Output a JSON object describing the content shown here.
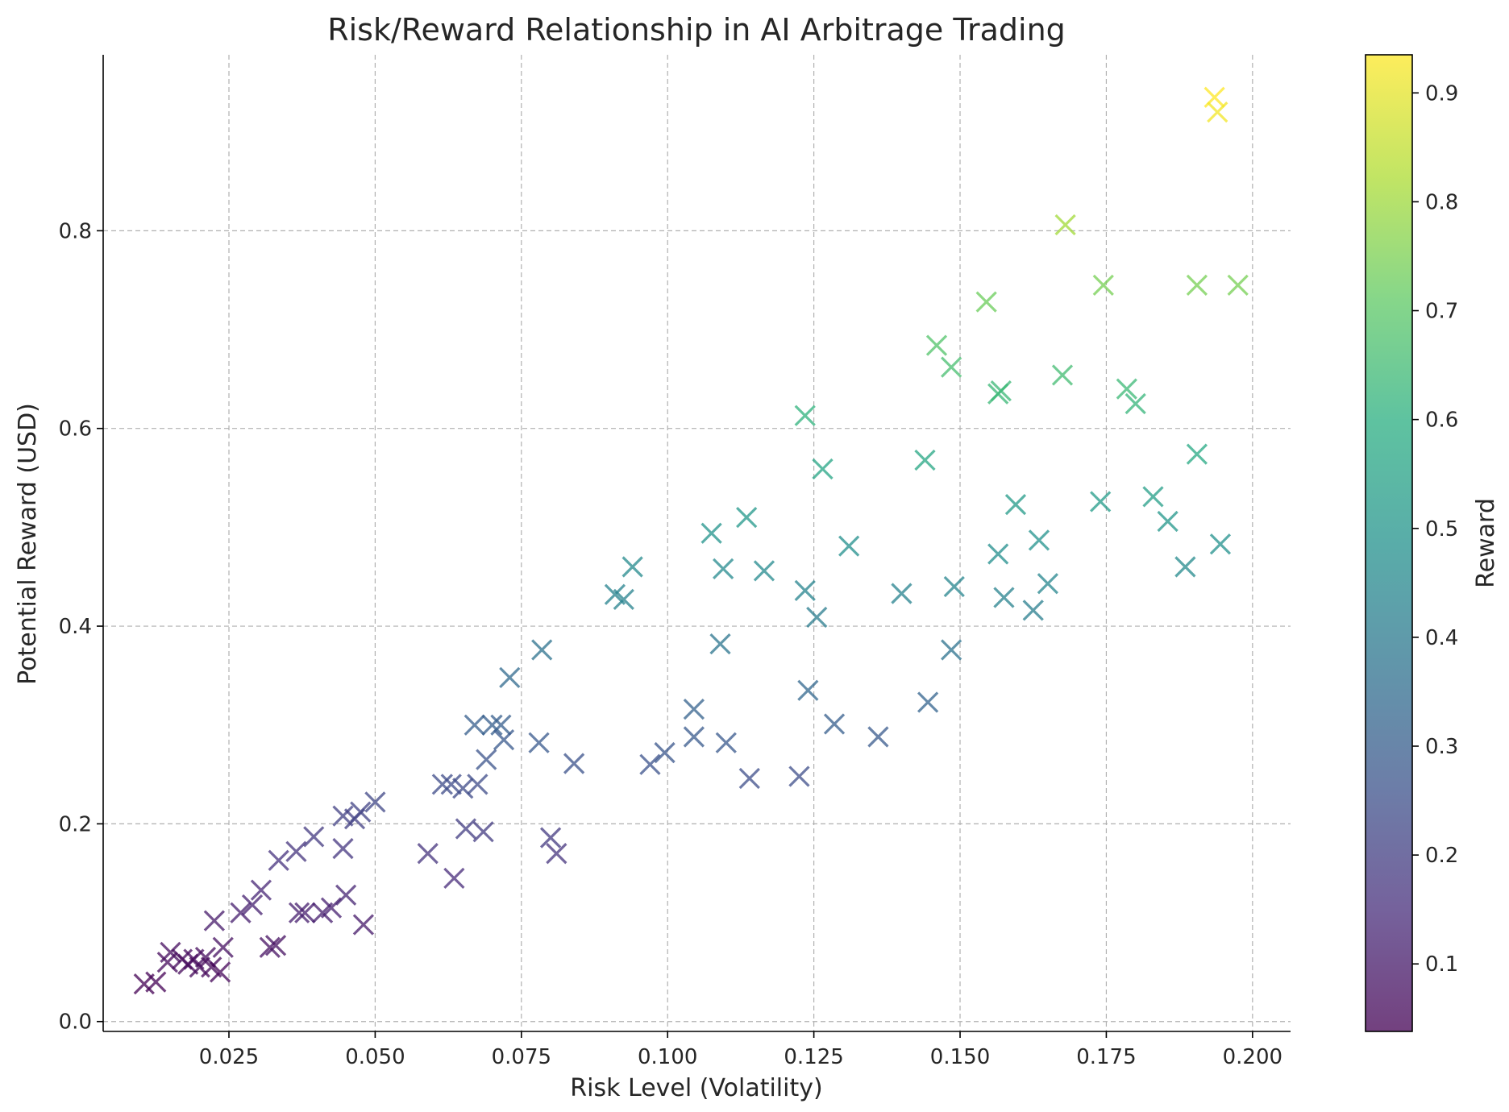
{
  "chart_data": {
    "type": "scatter",
    "title": "Risk/Reward Relationship in AI Arbitrage Trading",
    "xlabel": "Risk Level (Volatility)",
    "ylabel": "Potential Reward (USD)",
    "xlim": [
      0.0035,
      0.2065
    ],
    "ylim": [
      -0.01,
      0.978
    ],
    "xticks": [
      0.025,
      0.05,
      0.075,
      0.1,
      0.125,
      0.15,
      0.175,
      0.2
    ],
    "xtick_labels": [
      "0.025",
      "0.050",
      "0.075",
      "0.100",
      "0.125",
      "0.150",
      "0.175",
      "0.200"
    ],
    "yticks": [
      0.0,
      0.2,
      0.4,
      0.6,
      0.8
    ],
    "ytick_labels": [
      "0.0",
      "0.2",
      "0.4",
      "0.6",
      "0.8"
    ],
    "grid": true,
    "marker": "x",
    "colormap": "viridis",
    "colorbar": {
      "label": "Reward",
      "range": [
        0.038,
        0.935
      ],
      "ticks": [
        0.1,
        0.2,
        0.3,
        0.4,
        0.5,
        0.6,
        0.7,
        0.8,
        0.9
      ],
      "tick_labels": [
        "0.1",
        "0.2",
        "0.3",
        "0.4",
        "0.5",
        "0.6",
        "0.7",
        "0.8",
        "0.9"
      ]
    },
    "points": [
      {
        "x": 0.0105,
        "y": 0.038
      },
      {
        "x": 0.0125,
        "y": 0.04
      },
      {
        "x": 0.0145,
        "y": 0.06
      },
      {
        "x": 0.015,
        "y": 0.07
      },
      {
        "x": 0.017,
        "y": 0.063
      },
      {
        "x": 0.018,
        "y": 0.058
      },
      {
        "x": 0.019,
        "y": 0.063
      },
      {
        "x": 0.02,
        "y": 0.055
      },
      {
        "x": 0.021,
        "y": 0.065
      },
      {
        "x": 0.022,
        "y": 0.055
      },
      {
        "x": 0.0225,
        "y": 0.102
      },
      {
        "x": 0.0235,
        "y": 0.05
      },
      {
        "x": 0.024,
        "y": 0.075
      },
      {
        "x": 0.027,
        "y": 0.11
      },
      {
        "x": 0.029,
        "y": 0.118
      },
      {
        "x": 0.0305,
        "y": 0.133
      },
      {
        "x": 0.032,
        "y": 0.075
      },
      {
        "x": 0.033,
        "y": 0.077
      },
      {
        "x": 0.0335,
        "y": 0.163
      },
      {
        "x": 0.0365,
        "y": 0.172
      },
      {
        "x": 0.037,
        "y": 0.11
      },
      {
        "x": 0.038,
        "y": 0.11
      },
      {
        "x": 0.0395,
        "y": 0.187
      },
      {
        "x": 0.041,
        "y": 0.11
      },
      {
        "x": 0.0425,
        "y": 0.115
      },
      {
        "x": 0.0445,
        "y": 0.175
      },
      {
        "x": 0.0445,
        "y": 0.208
      },
      {
        "x": 0.045,
        "y": 0.128
      },
      {
        "x": 0.0465,
        "y": 0.205
      },
      {
        "x": 0.0475,
        "y": 0.212
      },
      {
        "x": 0.048,
        "y": 0.098
      },
      {
        "x": 0.05,
        "y": 0.222
      },
      {
        "x": 0.059,
        "y": 0.17
      },
      {
        "x": 0.0615,
        "y": 0.24
      },
      {
        "x": 0.063,
        "y": 0.24
      },
      {
        "x": 0.0635,
        "y": 0.145
      },
      {
        "x": 0.065,
        "y": 0.236
      },
      {
        "x": 0.0655,
        "y": 0.195
      },
      {
        "x": 0.067,
        "y": 0.3
      },
      {
        "x": 0.0675,
        "y": 0.24
      },
      {
        "x": 0.0685,
        "y": 0.192
      },
      {
        "x": 0.069,
        "y": 0.265
      },
      {
        "x": 0.07,
        "y": 0.3
      },
      {
        "x": 0.0715,
        "y": 0.3
      },
      {
        "x": 0.072,
        "y": 0.285
      },
      {
        "x": 0.073,
        "y": 0.348
      },
      {
        "x": 0.078,
        "y": 0.282
      },
      {
        "x": 0.0785,
        "y": 0.376
      },
      {
        "x": 0.08,
        "y": 0.186
      },
      {
        "x": 0.081,
        "y": 0.17
      },
      {
        "x": 0.084,
        "y": 0.261
      },
      {
        "x": 0.091,
        "y": 0.432
      },
      {
        "x": 0.0925,
        "y": 0.427
      },
      {
        "x": 0.094,
        "y": 0.46
      },
      {
        "x": 0.097,
        "y": 0.26
      },
      {
        "x": 0.0995,
        "y": 0.272
      },
      {
        "x": 0.1045,
        "y": 0.316
      },
      {
        "x": 0.1045,
        "y": 0.288
      },
      {
        "x": 0.1075,
        "y": 0.494
      },
      {
        "x": 0.109,
        "y": 0.382
      },
      {
        "x": 0.1095,
        "y": 0.458
      },
      {
        "x": 0.11,
        "y": 0.282
      },
      {
        "x": 0.1135,
        "y": 0.51
      },
      {
        "x": 0.114,
        "y": 0.246
      },
      {
        "x": 0.1165,
        "y": 0.456
      },
      {
        "x": 0.1225,
        "y": 0.248
      },
      {
        "x": 0.1235,
        "y": 0.613
      },
      {
        "x": 0.1235,
        "y": 0.436
      },
      {
        "x": 0.124,
        "y": 0.335
      },
      {
        "x": 0.1255,
        "y": 0.409
      },
      {
        "x": 0.1265,
        "y": 0.559
      },
      {
        "x": 0.1285,
        "y": 0.301
      },
      {
        "x": 0.131,
        "y": 0.481
      },
      {
        "x": 0.136,
        "y": 0.288
      },
      {
        "x": 0.14,
        "y": 0.433
      },
      {
        "x": 0.144,
        "y": 0.568
      },
      {
        "x": 0.1445,
        "y": 0.323
      },
      {
        "x": 0.146,
        "y": 0.684
      },
      {
        "x": 0.1485,
        "y": 0.376
      },
      {
        "x": 0.1485,
        "y": 0.662
      },
      {
        "x": 0.149,
        "y": 0.44
      },
      {
        "x": 0.1545,
        "y": 0.728
      },
      {
        "x": 0.1565,
        "y": 0.635
      },
      {
        "x": 0.1565,
        "y": 0.473
      },
      {
        "x": 0.157,
        "y": 0.638
      },
      {
        "x": 0.1575,
        "y": 0.429
      },
      {
        "x": 0.1595,
        "y": 0.523
      },
      {
        "x": 0.1625,
        "y": 0.416
      },
      {
        "x": 0.1635,
        "y": 0.487
      },
      {
        "x": 0.165,
        "y": 0.443
      },
      {
        "x": 0.1675,
        "y": 0.654
      },
      {
        "x": 0.168,
        "y": 0.806
      },
      {
        "x": 0.174,
        "y": 0.526
      },
      {
        "x": 0.1745,
        "y": 0.745
      },
      {
        "x": 0.1785,
        "y": 0.64
      },
      {
        "x": 0.18,
        "y": 0.625
      },
      {
        "x": 0.183,
        "y": 0.531
      },
      {
        "x": 0.1855,
        "y": 0.506
      },
      {
        "x": 0.1885,
        "y": 0.46
      },
      {
        "x": 0.1905,
        "y": 0.574
      },
      {
        "x": 0.1905,
        "y": 0.745
      },
      {
        "x": 0.1935,
        "y": 0.935
      },
      {
        "x": 0.194,
        "y": 0.92
      },
      {
        "x": 0.1945,
        "y": 0.483
      },
      {
        "x": 0.1975,
        "y": 0.745
      }
    ]
  }
}
